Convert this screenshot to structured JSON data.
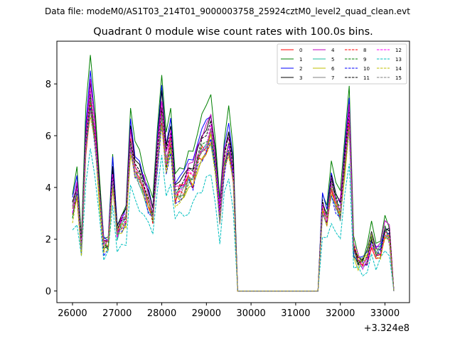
{
  "chart_data": {
    "type": "line",
    "suptitle": "Data file: modeM0/AS1T03_214T01_9000003758_25924cztM0_level2_quad_clean.evt",
    "title": "Quadrant 0 module wise count rates with 100.0s bins.",
    "xlabel": "",
    "ylabel": "",
    "x_offset_label": "+3.324e8",
    "xlim": [
      25650,
      33550
    ],
    "ylim": [
      -0.45,
      9.65
    ],
    "xticks": [
      26000,
      27000,
      28000,
      29000,
      30000,
      31000,
      32000,
      33000
    ],
    "xtick_labels": [
      "26000",
      "27000",
      "28000",
      "29000",
      "30000",
      "31000",
      "32000",
      "33000"
    ],
    "yticks": [
      0,
      2,
      4,
      6,
      8
    ],
    "ytick_labels": [
      "0",
      "2",
      "4",
      "6",
      "8"
    ],
    "x": [
      26000,
      26100,
      26200,
      26300,
      26400,
      26500,
      26600,
      26700,
      26800,
      26900,
      27000,
      27100,
      27200,
      27300,
      27400,
      27500,
      27600,
      27700,
      27800,
      27900,
      28000,
      28100,
      28200,
      28300,
      28400,
      28500,
      28600,
      28700,
      28800,
      28900,
      29000,
      29100,
      29200,
      29300,
      29400,
      29500,
      29600,
      29700,
      29800,
      29900,
      30000,
      30100,
      30200,
      30300,
      30400,
      30500,
      30600,
      30700,
      30800,
      30900,
      31000,
      31100,
      31200,
      31300,
      31400,
      31500,
      31600,
      31700,
      31800,
      31900,
      32000,
      32100,
      32200,
      32300,
      32400,
      32500,
      32600,
      32700,
      32800,
      32900,
      33000,
      33100,
      33200
    ],
    "legend": {
      "location": "upper right",
      "ncol": 4
    },
    "series": [
      {
        "name": "0",
        "color": "#ff0000",
        "dash": "solid",
        "scale": 0.86,
        "jitter": 0.35
      },
      {
        "name": "1",
        "color": "#008000",
        "dash": "solid",
        "scale": 1.07,
        "jitter": 0.25
      },
      {
        "name": "2",
        "color": "#0000ff",
        "dash": "solid",
        "scale": 1.0,
        "jitter": 0.2
      },
      {
        "name": "3",
        "color": "#000000",
        "dash": "solid",
        "scale": 0.97,
        "jitter": 0.15
      },
      {
        "name": "4",
        "color": "#bf00bf",
        "dash": "solid",
        "scale": 0.95,
        "jitter": 0.3
      },
      {
        "name": "5",
        "color": "#1abc9c",
        "dash": "solid",
        "scale": 0.85,
        "jitter": 0.3
      },
      {
        "name": "6",
        "color": "#bfbf00",
        "dash": "solid",
        "scale": 0.84,
        "jitter": 0.3
      },
      {
        "name": "7",
        "color": "#808080",
        "dash": "solid",
        "scale": 0.88,
        "jitter": 0.25
      },
      {
        "name": "8",
        "color": "#ff0000",
        "dash": "dashed",
        "scale": 0.87,
        "jitter": 0.3
      },
      {
        "name": "9",
        "color": "#008000",
        "dash": "dashed",
        "scale": 0.88,
        "jitter": 0.3
      },
      {
        "name": "10",
        "color": "#0000ff",
        "dash": "dashed",
        "scale": 0.84,
        "jitter": 0.3
      },
      {
        "name": "11",
        "color": "#000000",
        "dash": "dashed",
        "scale": 0.92,
        "jitter": 0.25
      },
      {
        "name": "12",
        "color": "#ff00ff",
        "dash": "dashed",
        "scale": 0.9,
        "jitter": 0.3
      },
      {
        "name": "13",
        "color": "#00bfbf",
        "dash": "dashed",
        "scale": 0.64,
        "jitter": 0.3
      },
      {
        "name": "14",
        "color": "#bfbf00",
        "dash": "dashed",
        "scale": 0.83,
        "jitter": 0.3
      },
      {
        "name": "15",
        "color": "#808080",
        "dash": "dashed",
        "scale": 0.86,
        "jitter": 0.3
      }
    ],
    "base_profile": [
      3.5,
      4.3,
      1.9,
      6.5,
      8.4,
      6.8,
      4.3,
      1.9,
      2.1,
      5.0,
      2.5,
      2.9,
      3.2,
      6.5,
      5.3,
      5.0,
      4.5,
      3.9,
      3.2,
      5.8,
      7.9,
      5.7,
      6.6,
      4.2,
      4.4,
      4.5,
      5.0,
      5.0,
      5.8,
      6.2,
      6.5,
      6.9,
      5.5,
      3.1,
      5.6,
      6.5,
      5.1,
      0.0,
      0.0,
      0.0,
      0.0,
      0.0,
      0.0,
      0.0,
      0.0,
      0.0,
      0.0,
      0.0,
      0.0,
      0.0,
      0.0,
      0.0,
      0.0,
      0.0,
      0.0,
      0.0,
      3.6,
      3.1,
      4.5,
      3.9,
      3.5,
      5.6,
      7.6,
      1.8,
      1.3,
      1.2,
      1.5,
      2.3,
      1.6,
      1.8,
      2.6,
      2.4,
      0.0
    ]
  }
}
